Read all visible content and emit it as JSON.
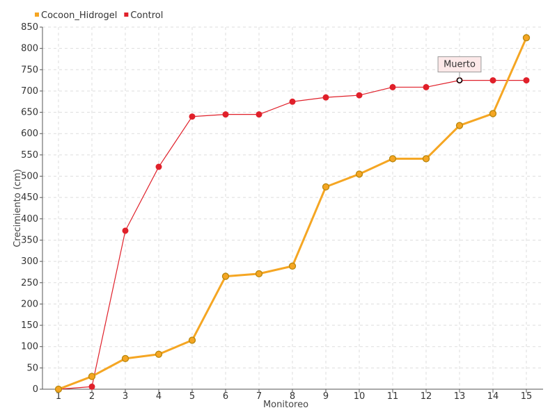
{
  "chart_data": {
    "type": "line",
    "xlabel": "Monitoreo",
    "ylabel": "Crecimiento (cm)",
    "categories": [
      "1",
      "2",
      "3",
      "4",
      "5",
      "6",
      "7",
      "8",
      "9",
      "10",
      "11",
      "12",
      "13",
      "14",
      "15"
    ],
    "ylim": [
      0,
      850
    ],
    "yticks": [
      0,
      50,
      100,
      150,
      200,
      250,
      300,
      350,
      400,
      450,
      500,
      550,
      600,
      650,
      700,
      750,
      800,
      850
    ],
    "grid": true,
    "legend_position": "top-left",
    "series": [
      {
        "name": "Cocoon_Hidrogel",
        "color": "#f5a623",
        "values": [
          0,
          30,
          72,
          82,
          115,
          265,
          271,
          289,
          475,
          505,
          541,
          541,
          619,
          647,
          825
        ]
      },
      {
        "name": "Control",
        "color": "#e0202a",
        "values": [
          0,
          6,
          372,
          522,
          640,
          645,
          645,
          675,
          685,
          690,
          709,
          709,
          725,
          725,
          725
        ]
      }
    ],
    "annotations": [
      {
        "text": "Muerto",
        "series": "Control",
        "category": "13"
      }
    ]
  }
}
